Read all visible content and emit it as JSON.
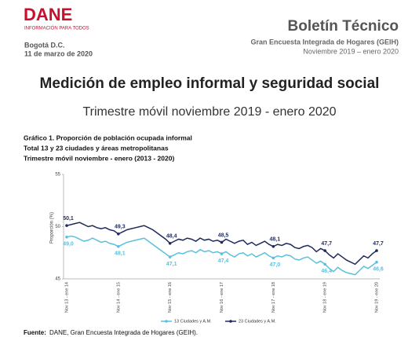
{
  "header": {
    "logo": "DANE",
    "tagline": "INFORMACIÓN PARA TODOS",
    "city": "Bogotá D.C.",
    "date": "11 de marzo de 2020",
    "bulletin": "Boletín Técnico",
    "survey": "Gran Encuesta Integrada de Hogares (GEIH)",
    "period": "Noviembre 2019 – enero 2020"
  },
  "title": "Medición de empleo informal y seguridad social",
  "subtitle": "Trimestre móvil noviembre 2019 - enero 2020",
  "caption": [
    "Gráfico 1. Proporción de población ocupada informal",
    "Total 13 y 23 ciudades y áreas metropolitanas",
    "Trimestre móvil noviembre - enero (2013 - 2020)"
  ],
  "chart_data": {
    "type": "line",
    "ylabel": "Proporción (%)",
    "ylim": [
      45,
      55
    ],
    "yticks": [
      45,
      50,
      55
    ],
    "grid": false,
    "legend": "bottom",
    "categories": [
      "Nov 13 - ene 14",
      null,
      null,
      null,
      null,
      null,
      null,
      null,
      null,
      null,
      null,
      null,
      "Nov 14 - ene 15",
      null,
      null,
      null,
      null,
      null,
      null,
      null,
      null,
      null,
      null,
      null,
      "Nov 15 - ene 16",
      null,
      null,
      null,
      null,
      null,
      null,
      null,
      null,
      null,
      null,
      null,
      "Nov 16 - ene 17",
      null,
      null,
      null,
      null,
      null,
      null,
      null,
      null,
      null,
      null,
      null,
      "Nov 17 - ene 18",
      null,
      null,
      null,
      null,
      null,
      null,
      null,
      null,
      null,
      null,
      null,
      "Nov 18 - ene 19",
      null,
      null,
      null,
      null,
      null,
      null,
      null,
      null,
      null,
      null,
      null,
      "Nov 19 - ene 20"
    ],
    "series": [
      {
        "name": "13 Ciudades y A.M.",
        "color": "#5bc0de",
        "label_side": "below",
        "values": [
          49.0,
          49.1,
          49.0,
          48.8,
          48.6,
          48.7,
          48.9,
          48.7,
          48.5,
          48.6,
          48.4,
          48.3,
          48.1,
          48.3,
          48.5,
          48.6,
          48.7,
          48.8,
          48.9,
          48.6,
          48.3,
          48.0,
          47.7,
          47.4,
          47.1,
          47.3,
          47.5,
          47.4,
          47.6,
          47.7,
          47.5,
          47.8,
          47.6,
          47.7,
          47.5,
          47.6,
          47.4,
          47.6,
          47.3,
          47.1,
          47.4,
          47.5,
          47.2,
          47.4,
          47.1,
          47.3,
          47.5,
          47.2,
          47.0,
          47.2,
          47.1,
          47.3,
          47.2,
          46.9,
          46.8,
          47.0,
          47.1,
          46.8,
          46.5,
          46.7,
          46.4,
          46.0,
          45.7,
          46.1,
          45.8,
          45.6,
          45.5,
          45.4,
          45.8,
          46.2,
          46.0,
          46.3,
          46.6
        ],
        "value_labels": [
          "49,0",
          null,
          null,
          null,
          null,
          null,
          null,
          null,
          null,
          null,
          null,
          null,
          "48,1",
          null,
          null,
          null,
          null,
          null,
          null,
          null,
          null,
          null,
          null,
          null,
          "47,1",
          null,
          null,
          null,
          null,
          null,
          null,
          null,
          null,
          null,
          null,
          null,
          "47,4",
          null,
          null,
          null,
          null,
          null,
          null,
          null,
          null,
          null,
          null,
          null,
          "47,0",
          null,
          null,
          null,
          null,
          null,
          null,
          null,
          null,
          null,
          null,
          null,
          "46,4",
          null,
          null,
          null,
          null,
          null,
          null,
          null,
          null,
          null,
          null,
          null,
          "46,6"
        ]
      },
      {
        "name": "23 Ciudades y A.M.",
        "color": "#1f2a5c",
        "label_side": "above",
        "values": [
          50.1,
          50.2,
          50.3,
          50.4,
          50.2,
          50.0,
          50.1,
          49.9,
          49.8,
          49.9,
          49.7,
          49.6,
          49.3,
          49.5,
          49.7,
          49.8,
          49.9,
          50.0,
          50.1,
          49.9,
          49.7,
          49.4,
          49.1,
          48.8,
          48.4,
          48.6,
          48.8,
          48.7,
          48.9,
          48.8,
          48.6,
          48.9,
          48.7,
          48.8,
          48.6,
          48.7,
          48.5,
          48.8,
          48.6,
          48.4,
          48.6,
          48.7,
          48.3,
          48.5,
          48.2,
          48.4,
          48.6,
          48.3,
          48.1,
          48.3,
          48.2,
          48.4,
          48.3,
          48.0,
          47.9,
          48.1,
          48.2,
          48.0,
          47.6,
          47.9,
          47.7,
          47.3,
          47.0,
          47.4,
          47.1,
          46.8,
          46.6,
          46.4,
          46.8,
          47.2,
          47.0,
          47.4,
          47.7
        ],
        "value_labels": [
          "50,1",
          null,
          null,
          null,
          null,
          null,
          null,
          null,
          null,
          null,
          null,
          null,
          "49,3",
          null,
          null,
          null,
          null,
          null,
          null,
          null,
          null,
          null,
          null,
          null,
          "48,4",
          null,
          null,
          null,
          null,
          null,
          null,
          null,
          null,
          null,
          null,
          null,
          "48,5",
          null,
          null,
          null,
          null,
          null,
          null,
          null,
          null,
          null,
          null,
          null,
          "48,1",
          null,
          null,
          null,
          null,
          null,
          null,
          null,
          null,
          null,
          null,
          null,
          "47,7",
          null,
          null,
          null,
          null,
          null,
          null,
          null,
          null,
          null,
          null,
          null,
          "47,7"
        ]
      }
    ]
  },
  "source": {
    "label": "Fuente:",
    "text": "DANE, Gran Encuesta Integrada de Hogares (GEIH)."
  }
}
